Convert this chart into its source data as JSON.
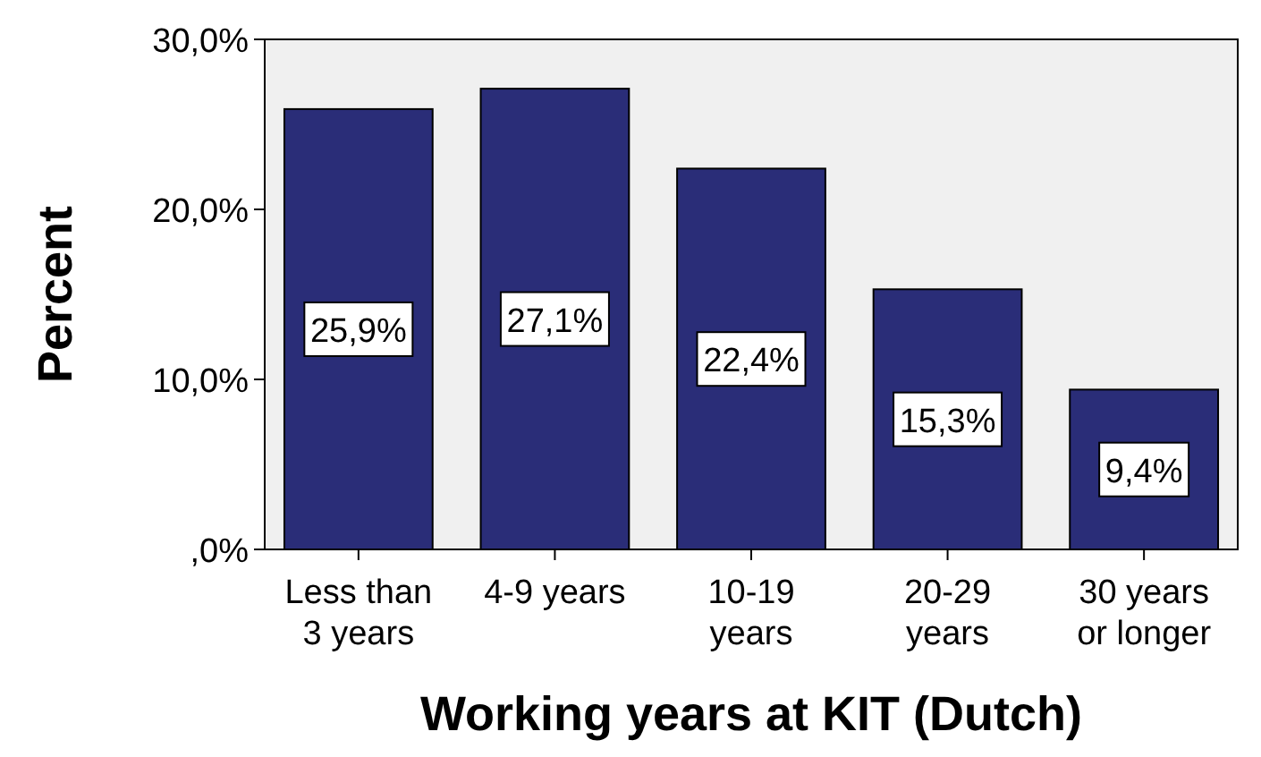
{
  "chart_data": {
    "type": "bar",
    "xlabel": "Working years at KIT (Dutch)",
    "ylabel": "Percent",
    "categories": [
      "Less than 3 years",
      "4-9 years",
      "10-19 years",
      "20-29 years",
      "30 years or longer"
    ],
    "values": [
      25.9,
      27.1,
      22.4,
      15.3,
      9.4
    ],
    "value_labels": [
      "25,9%",
      "27,1%",
      "22,4%",
      "15,3%",
      "9,4%"
    ],
    "color": "#2a2d78",
    "ylim": [
      0,
      30
    ],
    "yticks": [
      {
        "value": 0,
        "label": ",0%"
      },
      {
        "value": 10,
        "label": "10,0%"
      },
      {
        "value": 20,
        "label": "20,0%"
      },
      {
        "value": 30,
        "label": "30,0%"
      }
    ],
    "grid": false
  }
}
